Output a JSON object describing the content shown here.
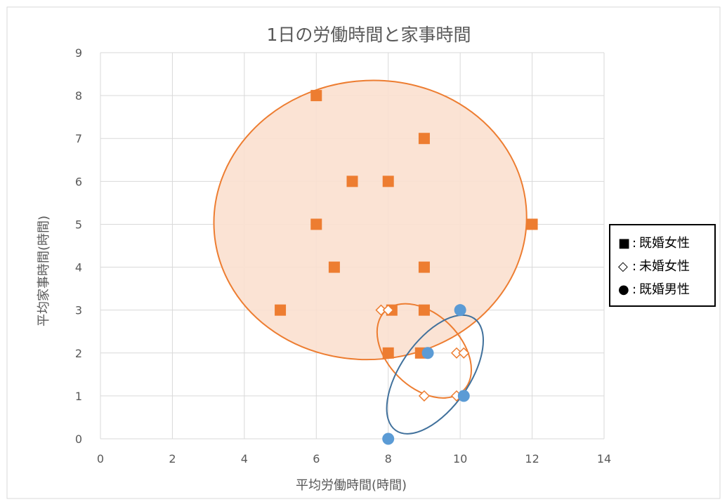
{
  "colors": {
    "married_female": "#ED7D31",
    "unmarried_female": "#ED7D31",
    "married_male": "#5B9BD5",
    "male_ellipse": "#41719C",
    "grid": "#D9D9D9",
    "fill_region": "#FBE0CF"
  },
  "chart_data": {
    "type": "scatter",
    "title": "1日の労働時間と家事時間",
    "xlabel": "平均労働時間(時間)",
    "ylabel": "平均家事時間(時間)",
    "xlim": [
      0,
      14
    ],
    "ylim": [
      0,
      9
    ],
    "xticks": [
      0,
      2,
      4,
      6,
      8,
      10,
      12,
      14
    ],
    "yticks": [
      0,
      1,
      2,
      3,
      4,
      5,
      6,
      7,
      8,
      9
    ],
    "grid": true,
    "legend_position": "right",
    "series": [
      {
        "name": "既婚女性",
        "marker": "square-filled",
        "points": [
          [
            6,
            8
          ],
          [
            9,
            7
          ],
          [
            7,
            6
          ],
          [
            8,
            6
          ],
          [
            6,
            5
          ],
          [
            12,
            5
          ],
          [
            6.5,
            4
          ],
          [
            9,
            4
          ],
          [
            5,
            3
          ],
          [
            8.1,
            3
          ],
          [
            9,
            3
          ],
          [
            8,
            2
          ],
          [
            8.9,
            2
          ]
        ]
      },
      {
        "name": "未婚女性",
        "marker": "diamond-open",
        "points": [
          [
            7.8,
            3
          ],
          [
            8,
            3
          ],
          [
            9.9,
            2
          ],
          [
            10.1,
            2
          ],
          [
            9,
            1
          ],
          [
            9.9,
            1
          ]
        ]
      },
      {
        "name": "既婚男性",
        "marker": "circle-filled",
        "points": [
          [
            10,
            3
          ],
          [
            9.1,
            2
          ],
          [
            10.1,
            1
          ],
          [
            8,
            0
          ]
        ]
      }
    ],
    "legend": [
      {
        "name": "既婚女性",
        "symbol": "■",
        "separator": ":"
      },
      {
        "name": "未婚女性",
        "symbol": "◇",
        "separator": ":"
      },
      {
        "name": "既婚男性",
        "symbol": "●",
        "separator": ":"
      }
    ],
    "regions": [
      {
        "series": "既婚女性",
        "cx": 7.5,
        "cy": 5.1,
        "rx": 4.35,
        "ry": 3.25,
        "rotate": -5,
        "filled": true
      },
      {
        "series": "未婚女性",
        "cx": 9.0,
        "cy": 2.05,
        "rx": 1.55,
        "ry": 0.85,
        "rotate": 45,
        "filled": false
      },
      {
        "series": "既婚男性",
        "cx": 9.3,
        "cy": 1.5,
        "rx": 1.9,
        "ry": 0.8,
        "rotate": -55,
        "filled": false
      }
    ]
  }
}
